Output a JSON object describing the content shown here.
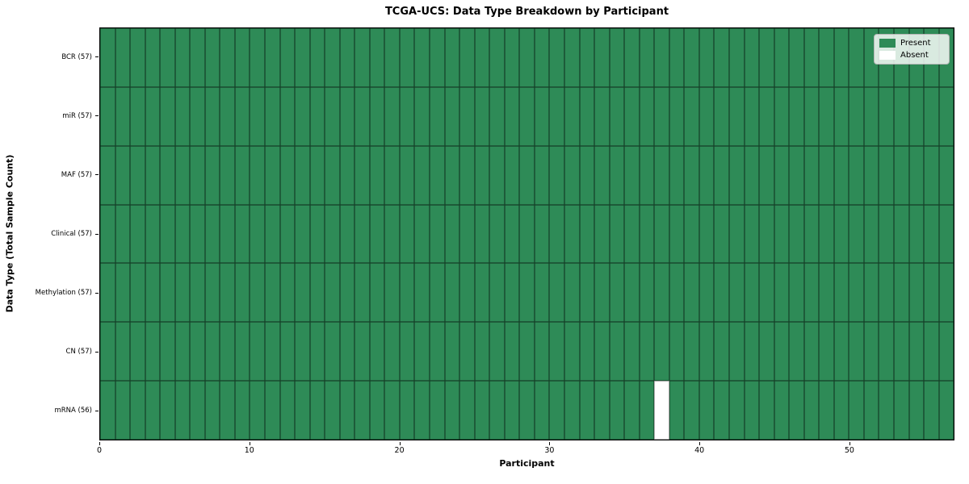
{
  "title": "TCGA-UCS: Data Type Breakdown by Participant",
  "xlabel": "Participant",
  "ylabel": "Data Type (Total Sample Count)",
  "colors": {
    "present": "#2e8b57",
    "absent": "#ffffff",
    "spine": "#000000",
    "background": "#ffffff"
  },
  "legend": {
    "items": [
      {
        "label": "Present",
        "color": "#2e8b57"
      },
      {
        "label": "Absent",
        "color": "#ffffff"
      }
    ],
    "position": "upper right"
  },
  "chart_data": {
    "type": "heatmap",
    "title": "TCGA-UCS: Data Type Breakdown by Participant",
    "xlabel": "Participant",
    "ylabel": "Data Type (Total Sample Count)",
    "x_ticks": [
      0,
      10,
      20,
      30,
      40,
      50
    ],
    "x_range": [
      0,
      57
    ],
    "n_participants": 57,
    "grid": false,
    "cell_values_meaning": "1 = data type present for participant, 0 = absent",
    "rows": [
      {
        "label": "BCR (57)",
        "data_type": "BCR",
        "total_sample_count": 57,
        "absent_participant_indices": []
      },
      {
        "label": "miR (57)",
        "data_type": "miR",
        "total_sample_count": 57,
        "absent_participant_indices": []
      },
      {
        "label": "MAF (57)",
        "data_type": "MAF",
        "total_sample_count": 57,
        "absent_participant_indices": []
      },
      {
        "label": "Clinical (57)",
        "data_type": "Clinical",
        "total_sample_count": 57,
        "absent_participant_indices": []
      },
      {
        "label": "Methylation (57)",
        "data_type": "Methylation",
        "total_sample_count": 57,
        "absent_participant_indices": []
      },
      {
        "label": "CN (57)",
        "data_type": "CN",
        "total_sample_count": 57,
        "absent_participant_indices": []
      },
      {
        "label": "mRNA (56)",
        "data_type": "mRNA",
        "total_sample_count": 56,
        "absent_participant_indices": [
          37
        ]
      }
    ]
  }
}
